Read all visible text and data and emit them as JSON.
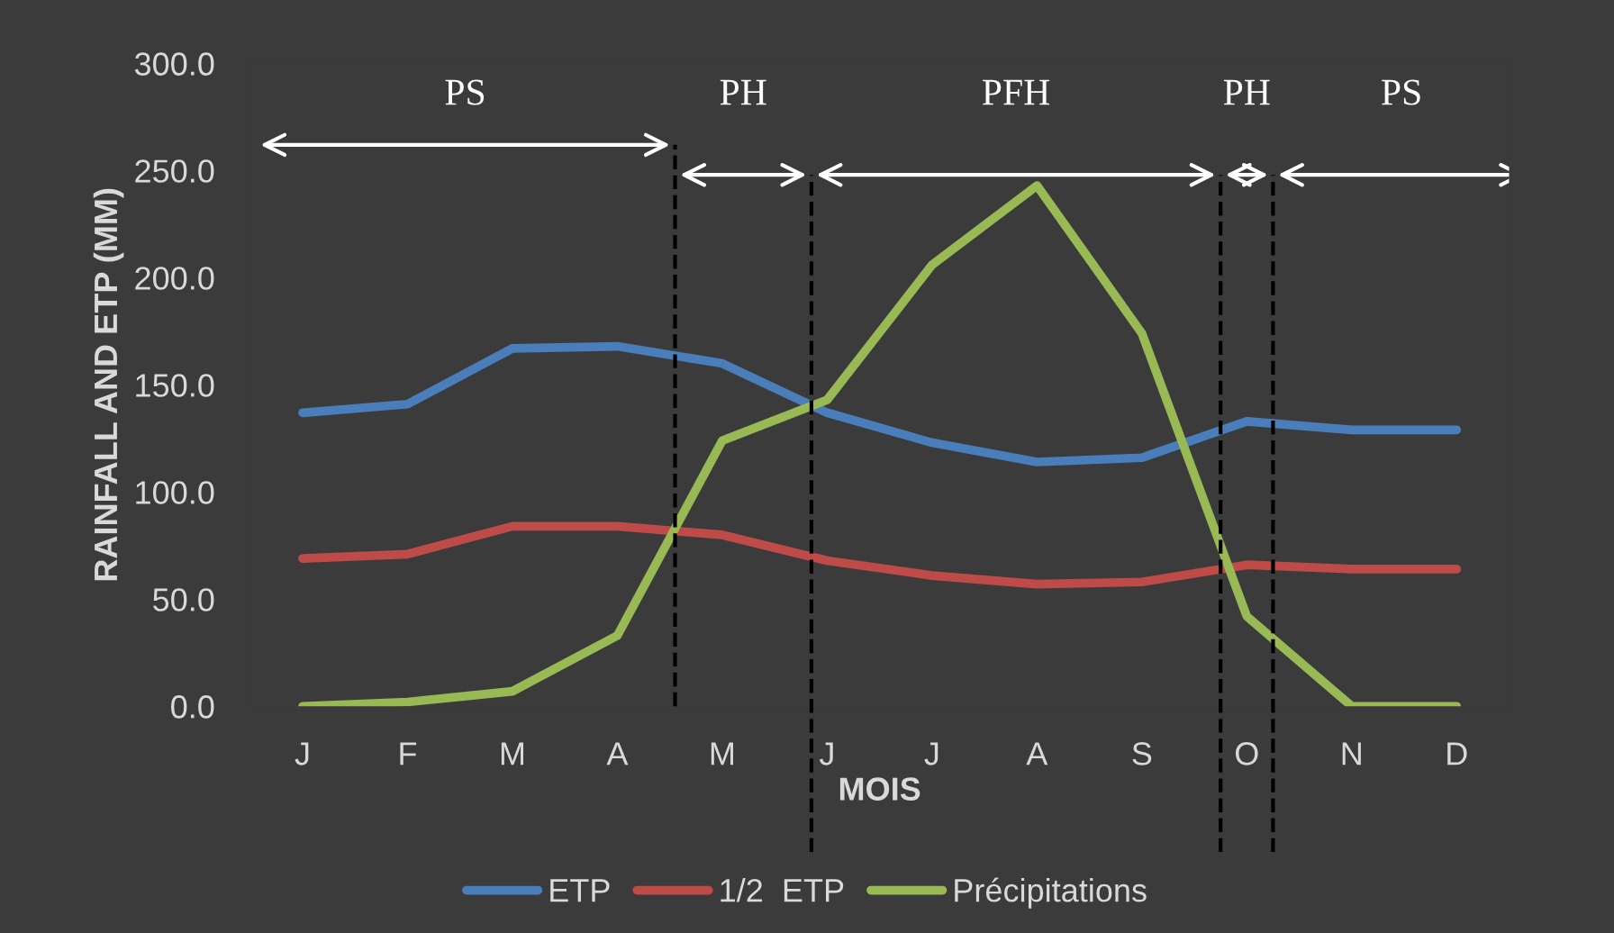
{
  "chart_data": {
    "type": "line",
    "xlabel": "MOIS",
    "ylabel": "RAINFALL AND ETP (MM)",
    "categories": [
      "J",
      "F",
      "M",
      "A",
      "M",
      "J",
      "J",
      "A",
      "S",
      "O",
      "N",
      "D"
    ],
    "series": [
      {
        "name": "ETP",
        "color": "#4a7ebb",
        "values": [
          137,
          141,
          167,
          168,
          160,
          137,
          123,
          114,
          116,
          133,
          129,
          129
        ]
      },
      {
        "name": "1/2  ETP",
        "color": "#be4b48",
        "values": [
          69,
          71,
          84,
          84,
          80,
          68,
          61,
          57,
          58,
          66,
          64,
          64
        ]
      },
      {
        "name": "Précipitations",
        "color": "#98b954",
        "values": [
          0,
          2,
          7,
          33,
          124,
          143,
          206,
          243,
          174,
          42,
          0,
          0
        ]
      }
    ],
    "ylim": [
      0,
      300
    ],
    "yticks": [
      {
        "value": 0,
        "label": "0.0"
      },
      {
        "value": 50,
        "label": "50.0"
      },
      {
        "value": 100,
        "label": "100.0"
      },
      {
        "value": 150,
        "label": "150.0"
      },
      {
        "value": 200,
        "label": "200.0"
      },
      {
        "value": 250,
        "label": "250.0"
      },
      {
        "value": 300,
        "label": "300.0"
      }
    ],
    "grid": false,
    "legend": "bottom",
    "marker": "none",
    "line_style": "solid",
    "annotations": [
      "PS",
      "PH",
      "PFH",
      "PH",
      "PS"
    ]
  }
}
